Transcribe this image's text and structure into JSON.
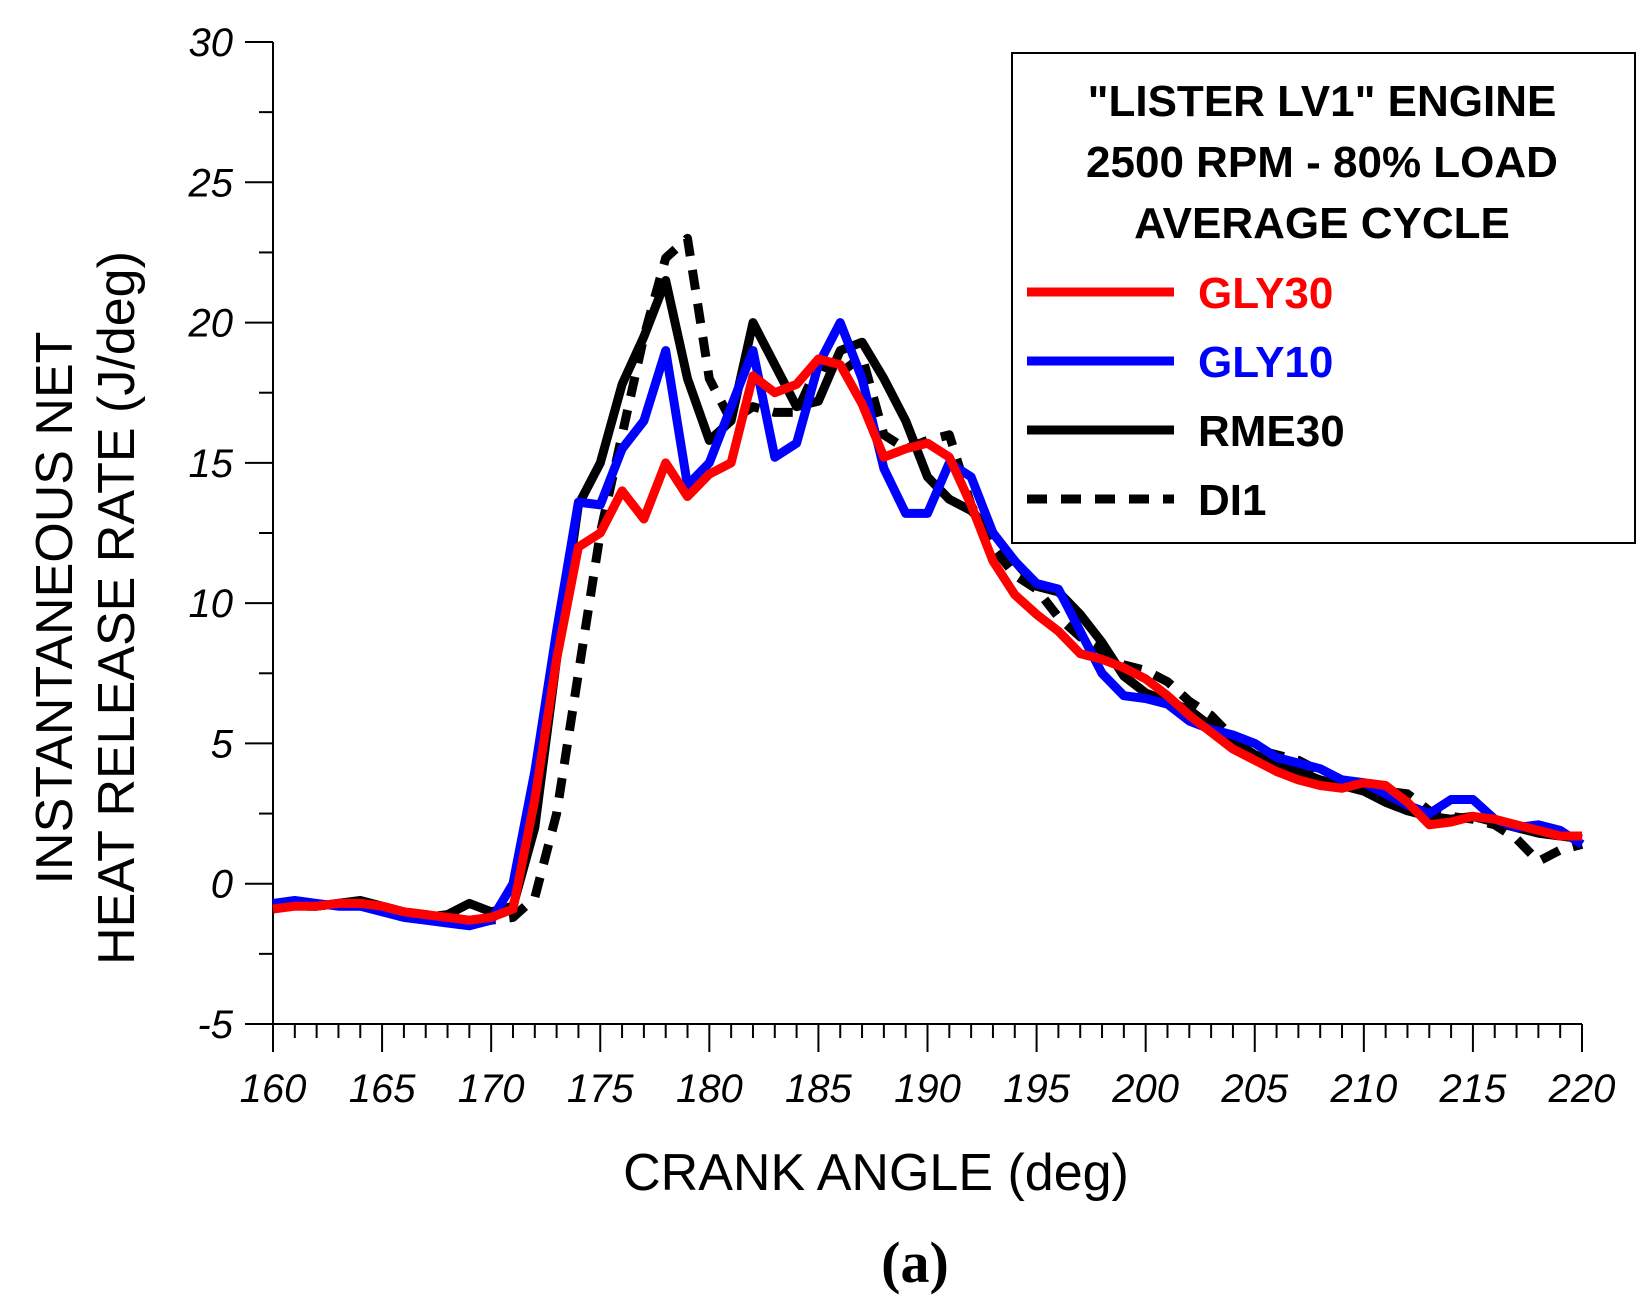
{
  "chart_data": {
    "type": "line",
    "title_lines": [
      "\"LISTER LV1\" ENGINE",
      "2500 RPM - 80% LOAD",
      "AVERAGE CYCLE"
    ],
    "xlabel": "CRANK ANGLE (deg)",
    "ylabel_lines": [
      "INSTANTANEOUS NET",
      "HEAT RELEASE RATE (J/deg)"
    ],
    "caption": "(a)",
    "xlim": [
      160,
      220
    ],
    "ylim": [
      -5,
      30
    ],
    "xticks": [
      160,
      165,
      170,
      175,
      180,
      185,
      190,
      195,
      200,
      205,
      210,
      215,
      220
    ],
    "yticks": [
      -5,
      0,
      5,
      10,
      15,
      20,
      25,
      30
    ],
    "legend_position": "top-right",
    "series": [
      {
        "name": "DI1",
        "color": "#000000",
        "dash": "dashed",
        "x": [
          160,
          161,
          162,
          163,
          164,
          165,
          166,
          167,
          168,
          169,
          170,
          171,
          172,
          173,
          174,
          175,
          176,
          177,
          178,
          179,
          180,
          181,
          182,
          183,
          184,
          185,
          186,
          187,
          188,
          189,
          190,
          191,
          192,
          193,
          194,
          195,
          196,
          197,
          198,
          199,
          200,
          201,
          202,
          203,
          204,
          205,
          206,
          207,
          208,
          209,
          210,
          211,
          212,
          213,
          214,
          215,
          216,
          217,
          218,
          219,
          220
        ],
        "values": [
          -0.8,
          -0.8,
          -0.8,
          -0.7,
          -0.7,
          -0.8,
          -1.0,
          -1.1,
          -1.2,
          -1.3,
          -1.3,
          -1.2,
          -0.5,
          2.5,
          7.5,
          12.5,
          16.0,
          19.5,
          22.3,
          23.0,
          18.0,
          16.5,
          17.0,
          16.8,
          16.8,
          18.5,
          18.2,
          18.8,
          16.0,
          15.5,
          15.8,
          16.0,
          13.5,
          12.0,
          11.0,
          10.5,
          9.5,
          8.8,
          8.3,
          7.8,
          7.6,
          7.2,
          6.5,
          6.0,
          5.2,
          4.8,
          4.6,
          4.4,
          4.0,
          3.6,
          3.5,
          3.3,
          3.2,
          2.6,
          2.4,
          2.3,
          2.1,
          1.6,
          0.8,
          1.2,
          1.4
        ]
      },
      {
        "name": "RME30",
        "color": "#000000",
        "dash": "solid",
        "x": [
          160,
          161,
          162,
          163,
          164,
          165,
          166,
          167,
          168,
          169,
          170,
          171,
          172,
          173,
          174,
          175,
          176,
          177,
          178,
          179,
          180,
          181,
          182,
          183,
          184,
          185,
          186,
          187,
          188,
          189,
          190,
          191,
          192,
          193,
          194,
          195,
          196,
          197,
          198,
          199,
          200,
          201,
          202,
          203,
          204,
          205,
          206,
          207,
          208,
          209,
          210,
          211,
          212,
          213,
          214,
          215,
          216,
          217,
          218,
          219,
          220
        ],
        "values": [
          -0.8,
          -0.7,
          -0.8,
          -0.7,
          -0.6,
          -0.8,
          -1.0,
          -1.2,
          -1.1,
          -0.7,
          -1.0,
          -0.8,
          2.0,
          8.0,
          13.5,
          15.0,
          17.8,
          19.5,
          21.5,
          18.0,
          15.8,
          16.5,
          20.0,
          18.5,
          17.0,
          17.2,
          19.0,
          19.3,
          18.0,
          16.5,
          14.5,
          13.7,
          13.3,
          12.5,
          11.5,
          10.6,
          10.4,
          9.6,
          8.6,
          7.4,
          6.8,
          6.5,
          6.2,
          5.6,
          5.1,
          4.6,
          4.3,
          4.0,
          3.7,
          3.5,
          3.3,
          2.9,
          2.6,
          2.4,
          2.3,
          2.4,
          2.2,
          2.0,
          1.8,
          1.7,
          1.6
        ]
      },
      {
        "name": "GLY10",
        "color": "#0000ff",
        "dash": "solid",
        "x": [
          160,
          161,
          162,
          163,
          164,
          165,
          166,
          167,
          168,
          169,
          170,
          171,
          172,
          173,
          174,
          175,
          176,
          177,
          178,
          179,
          180,
          181,
          182,
          183,
          184,
          185,
          186,
          187,
          188,
          189,
          190,
          191,
          192,
          193,
          194,
          195,
          196,
          197,
          198,
          199,
          200,
          201,
          202,
          203,
          204,
          205,
          206,
          207,
          208,
          209,
          210,
          211,
          212,
          213,
          214,
          215,
          216,
          217,
          218,
          219,
          220
        ],
        "values": [
          -0.7,
          -0.6,
          -0.7,
          -0.8,
          -0.8,
          -1.0,
          -1.2,
          -1.3,
          -1.4,
          -1.5,
          -1.3,
          0.0,
          4.0,
          9.0,
          13.6,
          13.5,
          15.5,
          16.5,
          19.0,
          14.2,
          15.0,
          17.0,
          19.0,
          15.2,
          15.7,
          18.5,
          20.0,
          18.0,
          14.8,
          13.2,
          13.2,
          15.0,
          14.5,
          12.5,
          11.5,
          10.7,
          10.5,
          9.0,
          7.5,
          6.7,
          6.6,
          6.4,
          5.8,
          5.5,
          5.3,
          5.0,
          4.5,
          4.3,
          4.1,
          3.7,
          3.6,
          3.2,
          2.8,
          2.5,
          3.0,
          3.0,
          2.3,
          2.0,
          2.1,
          1.9,
          1.4
        ]
      },
      {
        "name": "GLY30",
        "color": "#ff0000",
        "dash": "solid",
        "x": [
          160,
          161,
          162,
          163,
          164,
          165,
          166,
          167,
          168,
          169,
          170,
          171,
          172,
          173,
          174,
          175,
          176,
          177,
          178,
          179,
          180,
          181,
          182,
          183,
          184,
          185,
          186,
          187,
          188,
          189,
          190,
          191,
          192,
          193,
          194,
          195,
          196,
          197,
          198,
          199,
          200,
          201,
          202,
          203,
          204,
          205,
          206,
          207,
          208,
          209,
          210,
          211,
          212,
          213,
          214,
          215,
          216,
          217,
          218,
          219,
          220
        ],
        "values": [
          -0.9,
          -0.8,
          -0.8,
          -0.7,
          -0.7,
          -0.8,
          -1.0,
          -1.1,
          -1.2,
          -1.3,
          -1.2,
          -0.9,
          3.0,
          8.0,
          12.0,
          12.5,
          14.0,
          13.0,
          15.0,
          13.8,
          14.6,
          15.0,
          18.1,
          17.5,
          17.8,
          18.7,
          18.5,
          17.1,
          15.2,
          15.5,
          15.7,
          15.2,
          13.5,
          11.5,
          10.3,
          9.6,
          9.0,
          8.2,
          8.0,
          7.7,
          7.3,
          6.7,
          6.0,
          5.4,
          4.8,
          4.4,
          4.0,
          3.7,
          3.5,
          3.4,
          3.6,
          3.5,
          2.9,
          2.1,
          2.2,
          2.4,
          2.3,
          2.1,
          1.9,
          1.7,
          1.7
        ]
      }
    ]
  }
}
